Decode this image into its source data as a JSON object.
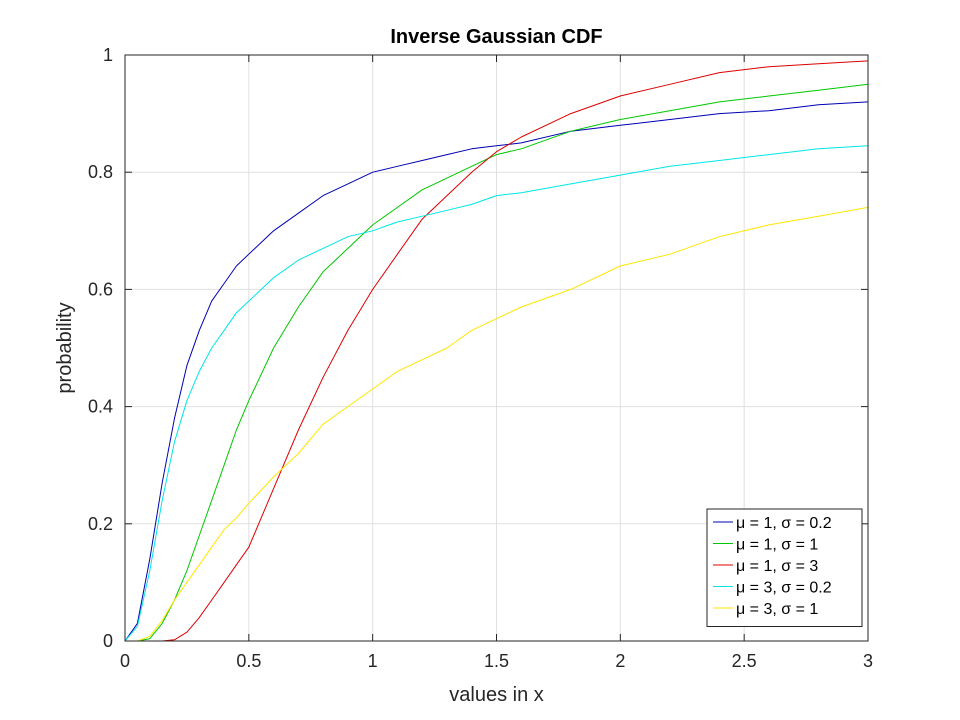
{
  "chart_data": {
    "type": "line",
    "title": "Inverse Gaussian CDF",
    "xlabel": "values in x",
    "ylabel": "probability",
    "xlim": [
      0,
      3
    ],
    "ylim": [
      0,
      1
    ],
    "grid": true,
    "legend_position": "bottom-right",
    "x_ticks": [
      "0",
      "0.5",
      "1",
      "1.5",
      "2",
      "2.5",
      "3"
    ],
    "y_ticks": [
      "0",
      "0.2",
      "0.4",
      "0.6",
      "0.8",
      "1"
    ],
    "x": [
      0,
      0.05,
      0.1,
      0.15,
      0.2,
      0.25,
      0.3,
      0.35,
      0.4,
      0.45,
      0.5,
      0.6,
      0.7,
      0.8,
      0.9,
      1,
      1.1,
      1.2,
      1.3,
      1.4,
      1.5,
      1.6,
      1.8,
      2,
      2.2,
      2.4,
      2.6,
      2.8,
      3
    ],
    "series": [
      {
        "name": "μ = 1, σ = 0.2",
        "color": "#0000b4",
        "values": [
          0,
          0.03,
          0.14,
          0.27,
          0.38,
          0.47,
          0.53,
          0.58,
          0.61,
          0.64,
          0.66,
          0.7,
          0.73,
          0.76,
          0.78,
          0.8,
          0.81,
          0.82,
          0.83,
          0.84,
          0.845,
          0.85,
          0.87,
          0.88,
          0.89,
          0.9,
          0.905,
          0.915,
          0.92
        ]
      },
      {
        "name": "μ = 1, σ = 1",
        "color": "#00c800",
        "values": [
          0,
          0,
          0.004,
          0.03,
          0.07,
          0.12,
          0.18,
          0.24,
          0.3,
          0.36,
          0.41,
          0.5,
          0.57,
          0.63,
          0.67,
          0.71,
          0.74,
          0.77,
          0.79,
          0.81,
          0.83,
          0.84,
          0.87,
          0.89,
          0.905,
          0.92,
          0.93,
          0.94,
          0.95
        ]
      },
      {
        "name": "μ = 1, σ = 3",
        "color": "#dc0000",
        "values": [
          0,
          0,
          0,
          0,
          0.002,
          0.015,
          0.04,
          0.07,
          0.1,
          0.13,
          0.16,
          0.26,
          0.36,
          0.45,
          0.53,
          0.6,
          0.66,
          0.72,
          0.76,
          0.8,
          0.835,
          0.86,
          0.9,
          0.93,
          0.95,
          0.97,
          0.98,
          0.985,
          0.99
        ]
      },
      {
        "name": "μ = 3, σ = 0.2",
        "color": "#00e6e6",
        "values": [
          0,
          0.025,
          0.12,
          0.24,
          0.34,
          0.41,
          0.46,
          0.5,
          0.53,
          0.56,
          0.58,
          0.62,
          0.65,
          0.67,
          0.69,
          0.7,
          0.715,
          0.725,
          0.735,
          0.745,
          0.76,
          0.765,
          0.78,
          0.795,
          0.81,
          0.82,
          0.83,
          0.84,
          0.845
        ]
      },
      {
        "name": "μ = 3, σ = 1",
        "color": "#ffe600",
        "values": [
          0,
          0,
          0.008,
          0.035,
          0.07,
          0.1,
          0.13,
          0.16,
          0.19,
          0.21,
          0.235,
          0.28,
          0.32,
          0.37,
          0.4,
          0.43,
          0.46,
          0.48,
          0.5,
          0.53,
          0.55,
          0.57,
          0.6,
          0.64,
          0.66,
          0.69,
          0.71,
          0.725,
          0.74
        ]
      }
    ]
  }
}
